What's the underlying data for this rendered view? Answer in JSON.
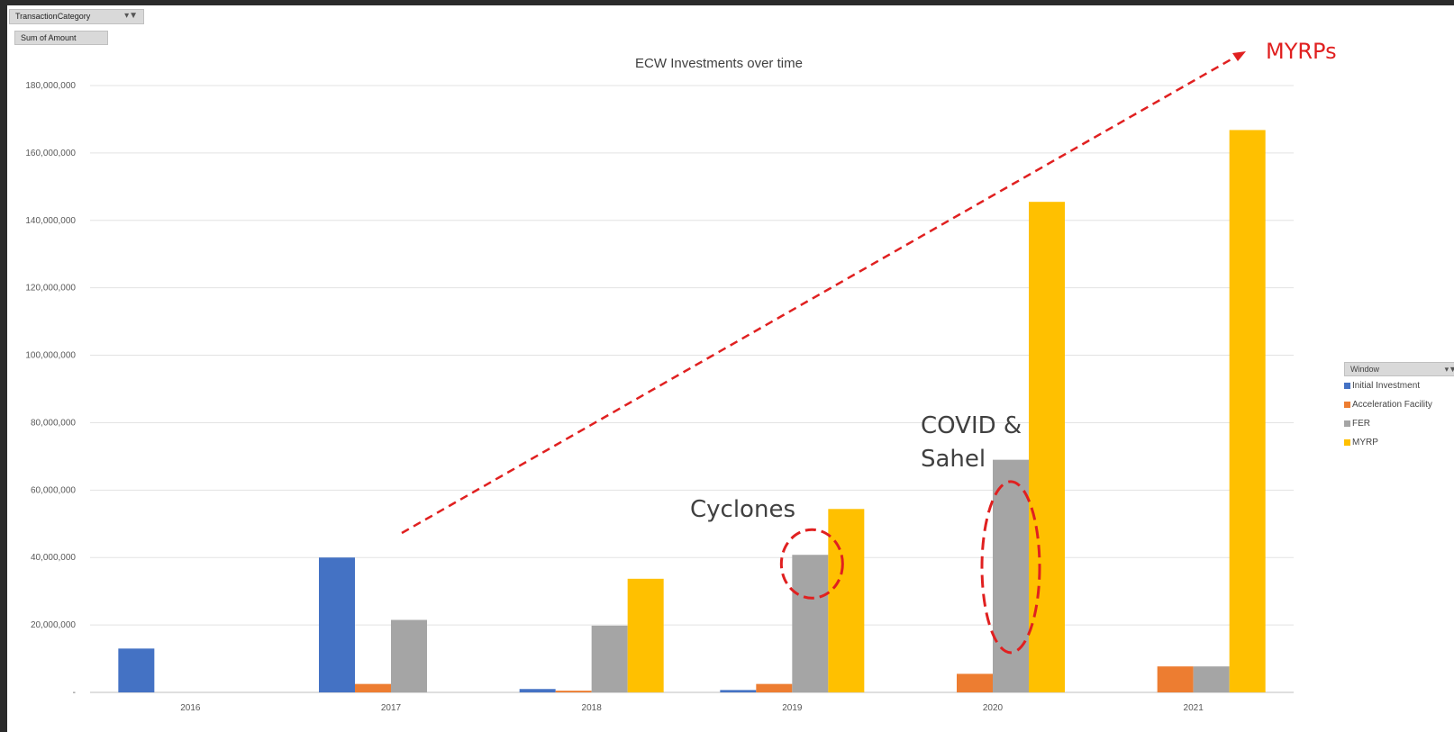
{
  "filters": {
    "transaction_category": "TransactionCategory",
    "sum_of_amount": "Sum of Amount",
    "filter_icon": "filter-icon"
  },
  "legend": {
    "title": "Window",
    "items": [
      {
        "label": "Initial Investment",
        "color": "#4472c4"
      },
      {
        "label": "Acceleration Facility",
        "color": "#ed7d31"
      },
      {
        "label": "FER",
        "color": "#a5a5a5"
      },
      {
        "label": "MYRP",
        "color": "#ffc000"
      }
    ]
  },
  "annotations": {
    "cyclones": "Cyclones",
    "covid_line1": "COVID &",
    "covid_line2": "Sahel",
    "myrps": "MYRPs",
    "highlight_color": "#e02020"
  },
  "chart_data": {
    "type": "bar",
    "title": "ECW Investments over time",
    "categories": [
      "2016",
      "2017",
      "2018",
      "2019",
      "2020",
      "2021"
    ],
    "series": [
      {
        "name": "Initial Investment",
        "color": "#4472c4",
        "values": [
          13000000,
          40000000,
          1000000,
          700000,
          0,
          0
        ]
      },
      {
        "name": "Acceleration Facility",
        "color": "#ed7d31",
        "values": [
          0,
          2500000,
          500000,
          2500000,
          5500000,
          7700000
        ]
      },
      {
        "name": "FER",
        "color": "#a5a5a5",
        "values": [
          0,
          21500000,
          19800000,
          40800000,
          69000000,
          7700000
        ]
      },
      {
        "name": "MYRP",
        "color": "#ffc000",
        "values": [
          0,
          0,
          33700000,
          54400000,
          145500000,
          166800000
        ]
      }
    ],
    "ylim": [
      0,
      180000000
    ],
    "yticks": [
      0,
      20000000,
      40000000,
      60000000,
      80000000,
      100000000,
      120000000,
      140000000,
      160000000,
      180000000
    ],
    "ytick_labels": [
      "-",
      "20,000,000",
      "40,000,000",
      "60,000,000",
      "80,000,000",
      "100,000,000",
      "120,000,000",
      "140,000,000",
      "160,000,000",
      "180,000,000"
    ],
    "grid": true,
    "legend_position": "right"
  }
}
